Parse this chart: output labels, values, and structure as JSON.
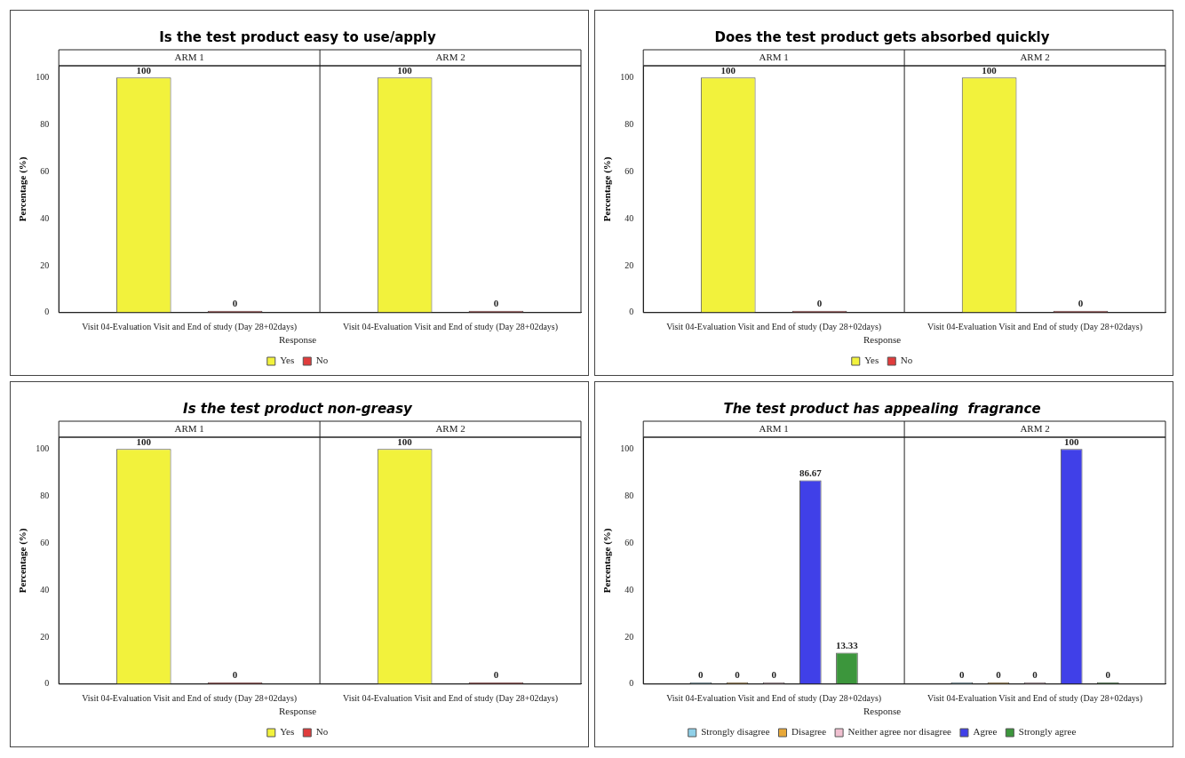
{
  "chart_data": [
    {
      "type": "bar",
      "title": "Is the test product easy to use/apply",
      "ylabel": "Percentage (%)",
      "categories": [
        "Visit 04-Evaluation Visit and End of study (Day 28+02days)",
        "Visit 04-Evaluation Visit and End of study (Day 28+02days)"
      ],
      "annotations": [
        "ARM 1",
        "ARM 2"
      ],
      "legend_title": "Response",
      "legend": "bottom",
      "data_labels": true,
      "ylim": [
        0,
        105
      ],
      "yticks": [
        0,
        20,
        40,
        60,
        80,
        100
      ],
      "series": [
        {
          "name": "Yes",
          "color": "#f2f23c",
          "values": [
            100,
            100
          ]
        },
        {
          "name": "No",
          "color": "#e03c3c",
          "values": [
            0,
            0
          ]
        }
      ]
    },
    {
      "type": "bar",
      "title": "Does the test product gets absorbed quickly",
      "ylabel": "Percentage (%)",
      "categories": [
        "Visit 04-Evaluation Visit and End of study (Day 28+02days)",
        "Visit 04-Evaluation Visit and End of study (Day 28+02days)"
      ],
      "annotations": [
        "ARM 1",
        "ARM 2"
      ],
      "legend_title": "Response",
      "legend": "bottom",
      "data_labels": true,
      "ylim": [
        0,
        105
      ],
      "yticks": [
        0,
        20,
        40,
        60,
        80,
        100
      ],
      "series": [
        {
          "name": "Yes",
          "color": "#f2f23c",
          "values": [
            100,
            100
          ]
        },
        {
          "name": "No",
          "color": "#e03c3c",
          "values": [
            0,
            0
          ]
        }
      ]
    },
    {
      "type": "bar",
      "title": "Is the test product non-greasy",
      "ylabel": "Percentage (%)",
      "categories": [
        "Visit 04-Evaluation Visit and End of study (Day 28+02days)",
        "Visit 04-Evaluation Visit and End of study (Day 28+02days)"
      ],
      "annotations": [
        "ARM 1",
        "ARM 2"
      ],
      "legend_title": "Response",
      "legend": "bottom",
      "data_labels": true,
      "ylim": [
        0,
        105
      ],
      "yticks": [
        0,
        20,
        40,
        60,
        80,
        100
      ],
      "series": [
        {
          "name": "Yes",
          "color": "#f2f23c",
          "values": [
            100,
            100
          ]
        },
        {
          "name": "No",
          "color": "#e03c3c",
          "values": [
            0,
            0
          ]
        }
      ]
    },
    {
      "type": "bar",
      "title": "The test product has appealing  fragrance",
      "ylabel": "Percentage (%)",
      "categories": [
        "Visit 04-Evaluation Visit and End of study (Day 28+02days)",
        "Visit 04-Evaluation Visit and End of study (Day 28+02days)"
      ],
      "annotations": [
        "ARM 1",
        "ARM 2"
      ],
      "legend_title": "Response",
      "legend": "bottom",
      "data_labels": true,
      "ylim": [
        0,
        105
      ],
      "yticks": [
        0,
        20,
        40,
        60,
        80,
        100
      ],
      "series": [
        {
          "name": "Strongly disagree",
          "color": "#8fd0e8",
          "values": [
            0,
            0
          ]
        },
        {
          "name": "Disagree",
          "color": "#e8a838",
          "values": [
            0,
            0
          ]
        },
        {
          "name": "Neither agree nor disagree",
          "color": "#f0c0d0",
          "values": [
            0,
            0
          ]
        },
        {
          "name": "Agree",
          "color": "#4040e8",
          "values": [
            86.67,
            100
          ]
        },
        {
          "name": "Strongly agree",
          "color": "#3c963c",
          "values": [
            13.33,
            0
          ]
        }
      ]
    }
  ]
}
